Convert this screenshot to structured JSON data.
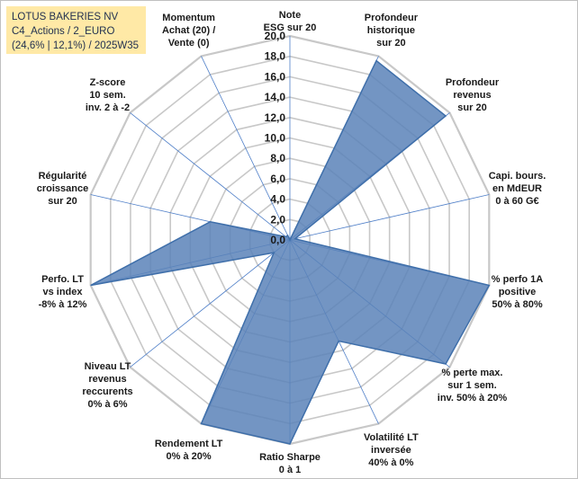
{
  "title_box": {
    "line1": "LOTUS BAKERIES NV",
    "line2": "C4_Actions / 2_EURO",
    "line3": "(24,6% | 12,1%) / 2025W35"
  },
  "chart_data": {
    "type": "radar",
    "axis_range": [
      0,
      20
    ],
    "tick_step": 2,
    "tick_labels": [
      "0,0",
      "2,0",
      "4,0",
      "6,0",
      "8,0",
      "10,0",
      "12,0",
      "14,0",
      "16,0",
      "18,0",
      "20,0"
    ],
    "axes": [
      {
        "label": [
          "Note",
          "ESG sur 20"
        ],
        "value": 0
      },
      {
        "label": [
          "Profondeur",
          "historique",
          "sur 20"
        ],
        "value": 19.5
      },
      {
        "label": [
          "Profondeur",
          "revenus",
          "sur 20"
        ],
        "value": 19.5
      },
      {
        "label": [
          "Capi. bours.",
          "en MdEUR",
          "0 à 60 G€"
        ],
        "value": 0.5
      },
      {
        "label": [
          "% perfo 1A",
          "positive",
          "50% à 80%"
        ],
        "value": 20
      },
      {
        "label": [
          "% perte max.",
          "sur 1 sem.",
          "inv. 50% à 20%"
        ],
        "value": 19.5
      },
      {
        "label": [
          "Volatilité LT",
          "inversée",
          "40% à 0%"
        ],
        "value": 11
      },
      {
        "label": [
          "Ratio Sharpe",
          "0 à 1"
        ],
        "value": 20
      },
      {
        "label": [
          "Rendement LT",
          "0% à 20%"
        ],
        "value": 20
      },
      {
        "label": [
          "Niveau LT",
          "revenus",
          "reccurents",
          "0% à 6%"
        ],
        "value": 2
      },
      {
        "label": [
          "Perfo. LT",
          "vs index",
          "-8% à 12%"
        ],
        "value": 20
      },
      {
        "label": [
          "Régularité",
          "croissance",
          "sur 20"
        ],
        "value": 8
      },
      {
        "label": [
          "Z-score",
          "10 sem.",
          "inv. 2 à -2"
        ],
        "value": 0.5
      },
      {
        "label": [
          "Momentum",
          "Achat (20) /",
          "Vente (0)"
        ],
        "value": 0.5
      }
    ],
    "grid": true,
    "legend": "none",
    "colors": {
      "fill": "#5b82b9",
      "stroke": "#3f6faa",
      "grid": "#c8c8c8",
      "spoke": "#4f7fc8",
      "title_bg": "#ffe9a6"
    }
  }
}
